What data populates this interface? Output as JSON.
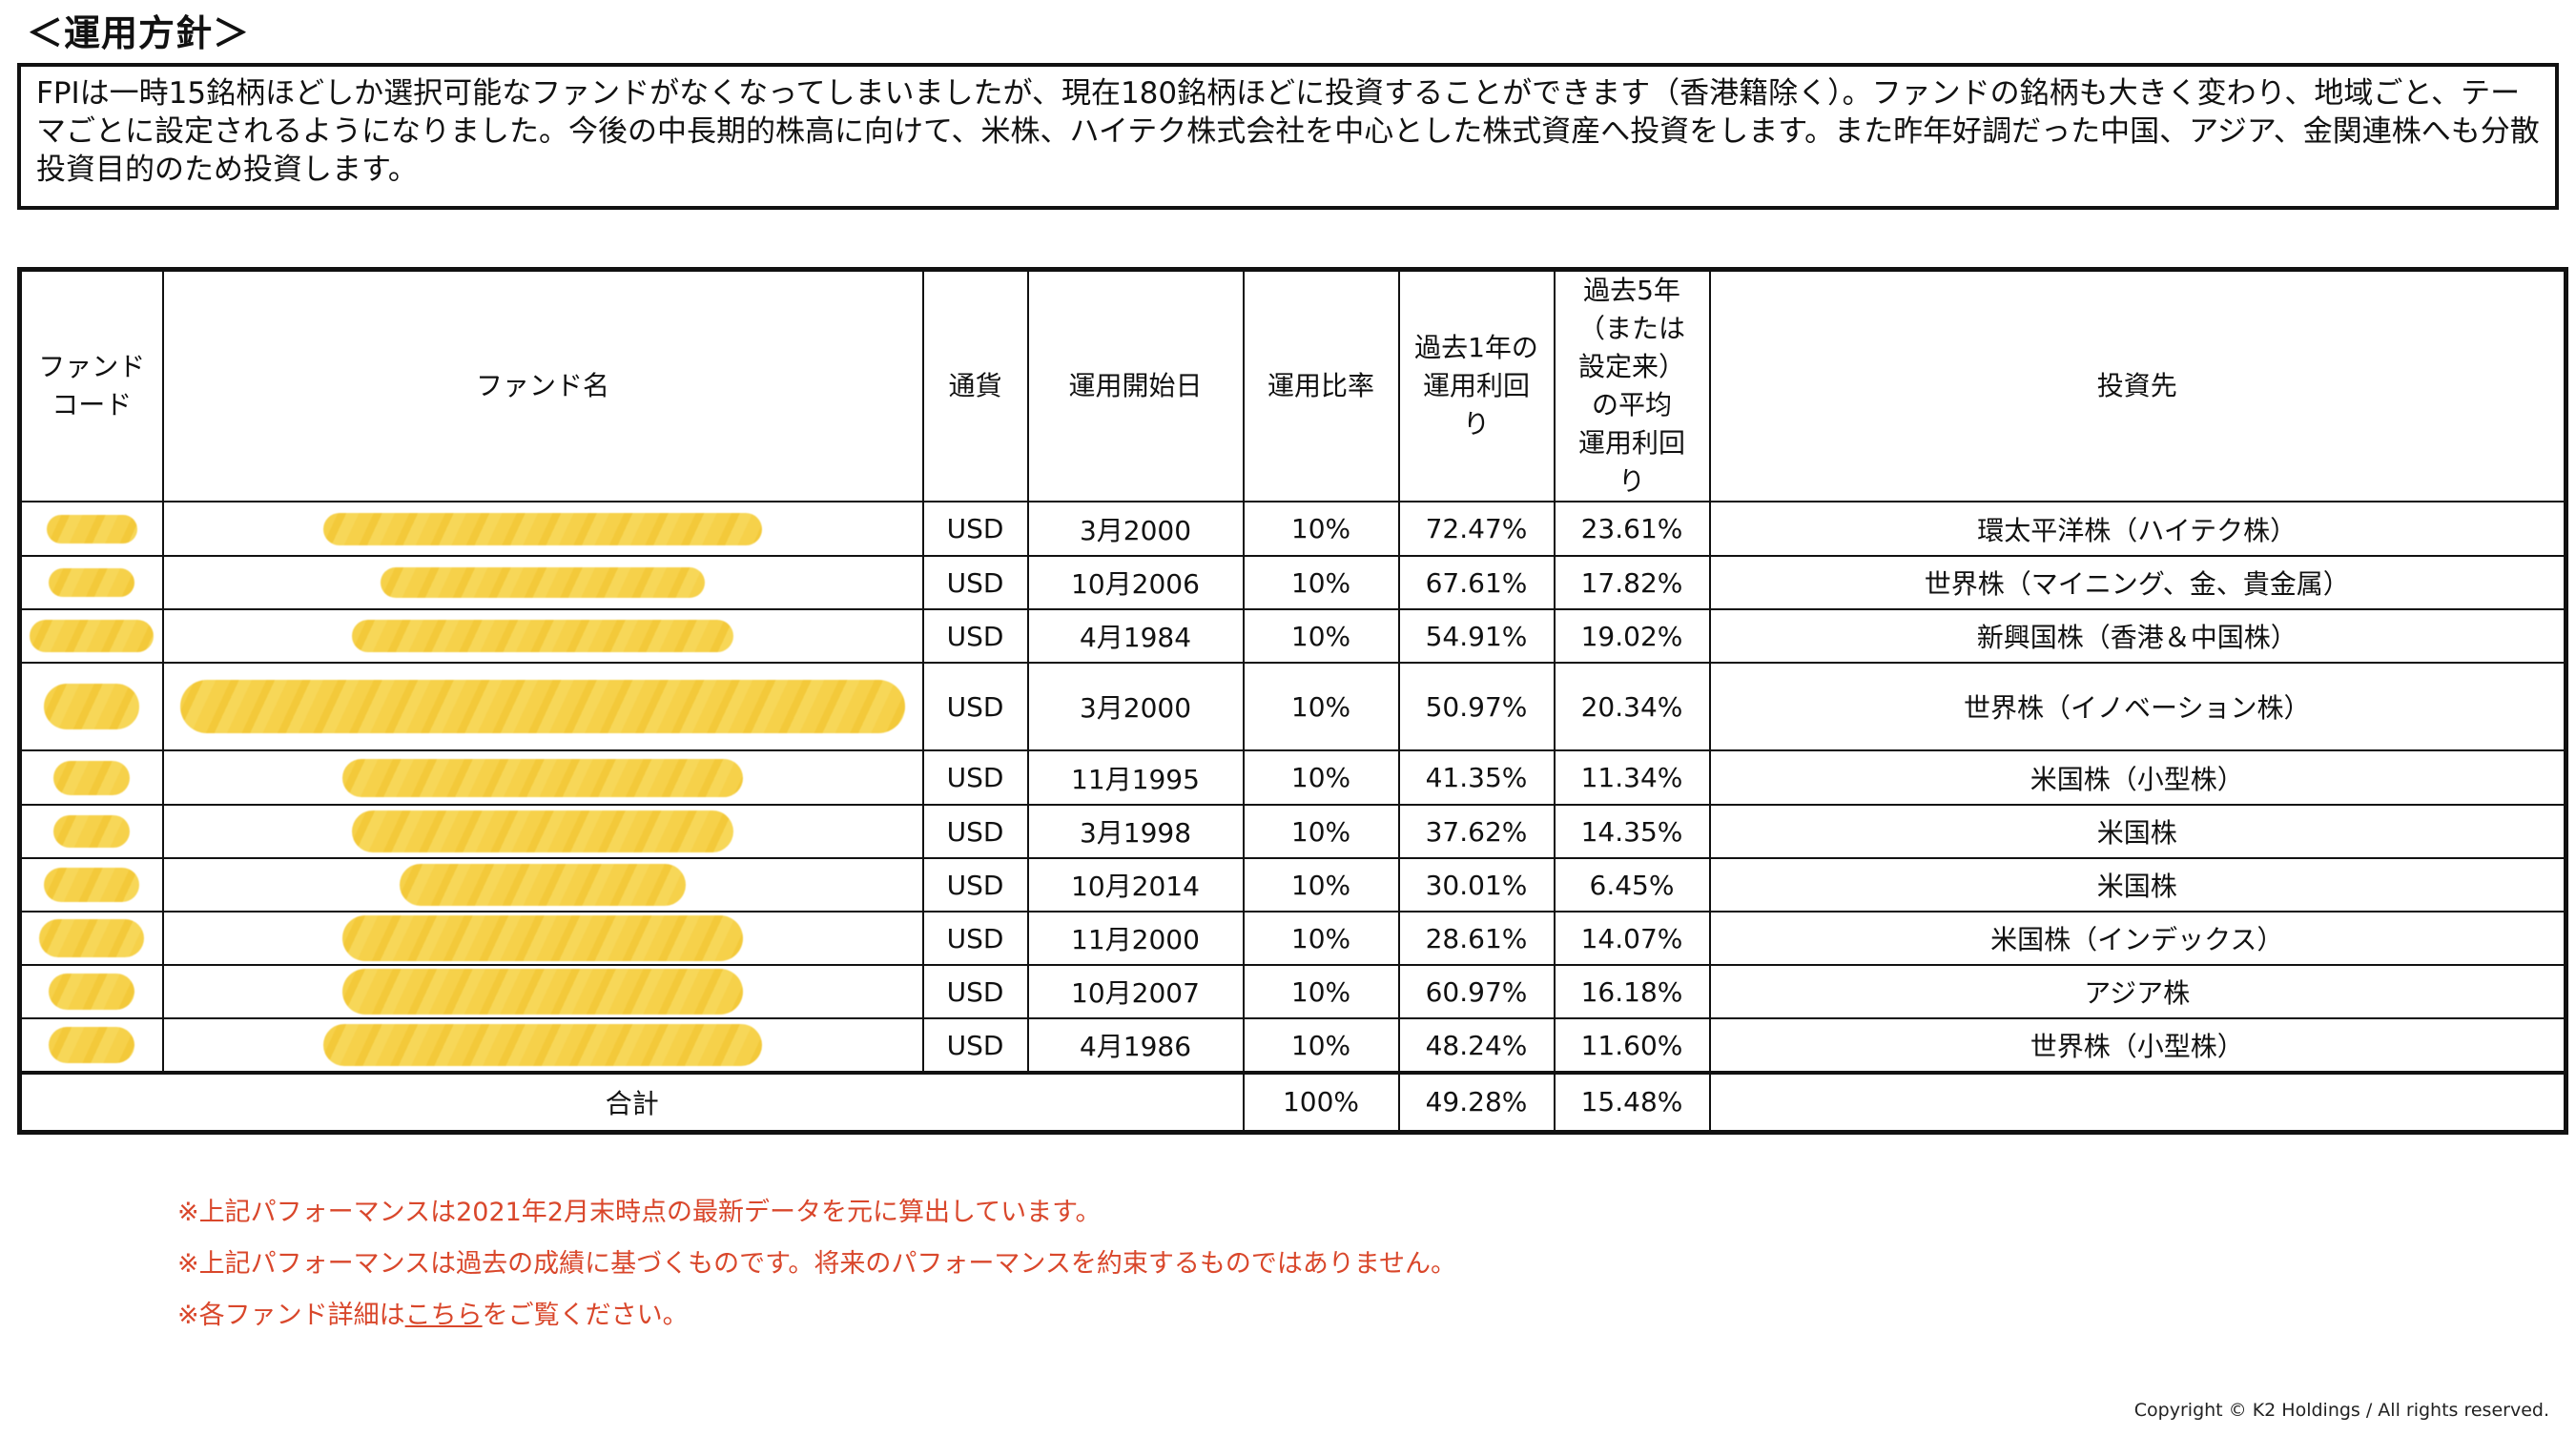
{
  "heading": "＜運用方針＞",
  "policy_text": "FPIは一時15銘柄ほどしか選択可能なファンドがなくなってしまいましたが、現在180銘柄ほどに投資することができます（香港籍除く）。ファンドの銘柄も大きく変わり、地域ごと、テーマごとに設定されるようになりました。今後の中長期的株高に向けて、米株、ハイテク株式会社を中心とした株式資産へ投資をします。また昨年好調だった中国、アジア、金関連株へも分散投資目的のため投資します。",
  "table": {
    "headers": {
      "code_line1": "ファンド",
      "code_line2": "コード",
      "name": "ファンド名",
      "currency": "通貨",
      "start_date": "運用開始日",
      "ratio": "運用比率",
      "ret1_line1": "過去1年の",
      "ret1_line2": "運用利回",
      "ret1_line3": "り",
      "ret5_line1": "過去5年",
      "ret5_line2": "（または",
      "ret5_line3": "設定来）",
      "ret5_line4": "の平均",
      "ret5_line5": "運用利回",
      "ret5_line6": "り",
      "target": "投資先"
    },
    "rows": [
      {
        "currency": "USD",
        "start_date": "3月2000",
        "ratio": "10%",
        "ret1": "72.47%",
        "ret5": "23.61%",
        "target": "環太平洋株（ハイテク株）"
      },
      {
        "currency": "USD",
        "start_date": "10月2006",
        "ratio": "10%",
        "ret1": "67.61%",
        "ret5": "17.82%",
        "target": "世界株（マイニング、金、貴金属）"
      },
      {
        "currency": "USD",
        "start_date": "4月1984",
        "ratio": "10%",
        "ret1": "54.91%",
        "ret5": "19.02%",
        "target": "新興国株（香港＆中国株）"
      },
      {
        "currency": "USD",
        "start_date": "3月2000",
        "ratio": "10%",
        "ret1": "50.97%",
        "ret5": "20.34%",
        "target": "世界株（イノベーション株）"
      },
      {
        "currency": "USD",
        "start_date": "11月1995",
        "ratio": "10%",
        "ret1": "41.35%",
        "ret5": "11.34%",
        "target": "米国株（小型株）"
      },
      {
        "currency": "USD",
        "start_date": "3月1998",
        "ratio": "10%",
        "ret1": "37.62%",
        "ret5": "14.35%",
        "target": "米国株"
      },
      {
        "currency": "USD",
        "start_date": "10月2014",
        "ratio": "10%",
        "ret1": "30.01%",
        "ret5": "6.45%",
        "target": "米国株"
      },
      {
        "currency": "USD",
        "start_date": "11月2000",
        "ratio": "10%",
        "ret1": "28.61%",
        "ret5": "14.07%",
        "target": "米国株（インデックス）"
      },
      {
        "currency": "USD",
        "start_date": "10月2007",
        "ratio": "10%",
        "ret1": "60.97%",
        "ret5": "16.18%",
        "target": "アジア株"
      },
      {
        "currency": "USD",
        "start_date": "4月1986",
        "ratio": "10%",
        "ret1": "48.24%",
        "ret5": "11.60%",
        "target": "世界株（小型株）"
      }
    ],
    "total": {
      "label": "合計",
      "ratio": "100%",
      "ret1": "49.28%",
      "ret5": "15.48%"
    }
  },
  "notes": {
    "note1": "※上記パフォーマンスは2021年2月末時点の最新データを元に算出しています。",
    "note2": "※上記パフォーマンスは過去の成績に基づくものです。将来のパフォーマンスを約束するものではありません。",
    "note3_prefix": "※各ファンド詳細は",
    "note3_link": "こちら",
    "note3_suffix": "をご覧ください。"
  },
  "copyright": "Copyright © K2 Holdings / All rights reserved.",
  "colors": {
    "redaction": "#f6d14a",
    "note_red": "#d9472b",
    "border": "#111111"
  }
}
